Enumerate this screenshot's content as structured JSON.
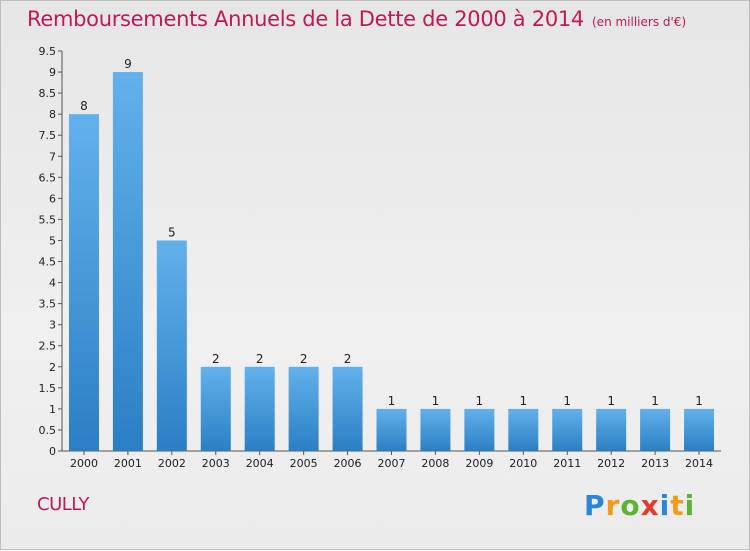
{
  "title": "Remboursements Annuels de la Dette de 2000 à 2014",
  "subtitle": "(en milliers d'€)",
  "place": "CULLY",
  "logo": {
    "letters": [
      {
        "char": "P",
        "color": "#2a86d6"
      },
      {
        "char": "r",
        "color": "#f29b1d"
      },
      {
        "char": "o",
        "color": "#5cb531"
      },
      {
        "char": "x",
        "color": "#e23b2f"
      },
      {
        "char": "i",
        "color": "#2a86d6"
      },
      {
        "char": "t",
        "color": "#f29b1d"
      },
      {
        "char": "i",
        "color": "#5cb531"
      }
    ]
  },
  "chart_data": {
    "type": "bar",
    "title": "Remboursements Annuels de la Dette de 2000 à 2014",
    "subtitle": "(en milliers d'€)",
    "categories": [
      "2000",
      "2001",
      "2002",
      "2003",
      "2004",
      "2005",
      "2006",
      "2007",
      "2008",
      "2009",
      "2010",
      "2011",
      "2012",
      "2013",
      "2014"
    ],
    "values": [
      8,
      9,
      5,
      2,
      2,
      2,
      2,
      1,
      1,
      1,
      1,
      1,
      1,
      1,
      1
    ],
    "data_labels": [
      "8",
      "9",
      "5",
      "2",
      "2",
      "2",
      "2",
      "1",
      "1",
      "1",
      "1",
      "1",
      "1",
      "1",
      "1"
    ],
    "ylim": [
      0,
      9.5
    ],
    "yticks": [
      0,
      0.5,
      1,
      1.5,
      2,
      2.5,
      3,
      3.5,
      4,
      4.5,
      5,
      5.5,
      6,
      6.5,
      7,
      7.5,
      8,
      8.5,
      9,
      9.5
    ],
    "ytick_labels": [
      "0",
      "0.5",
      "1",
      "1.5",
      "2",
      "2.5",
      "3",
      "3.5",
      "4",
      "4.5",
      "5",
      "5.5",
      "6",
      "6.5",
      "7",
      "7.5",
      "8",
      "8.5",
      "9",
      "9.5"
    ],
    "grid": false,
    "bar_color_light": "#63b1ec",
    "bar_color_dark": "#2a7fc4"
  }
}
